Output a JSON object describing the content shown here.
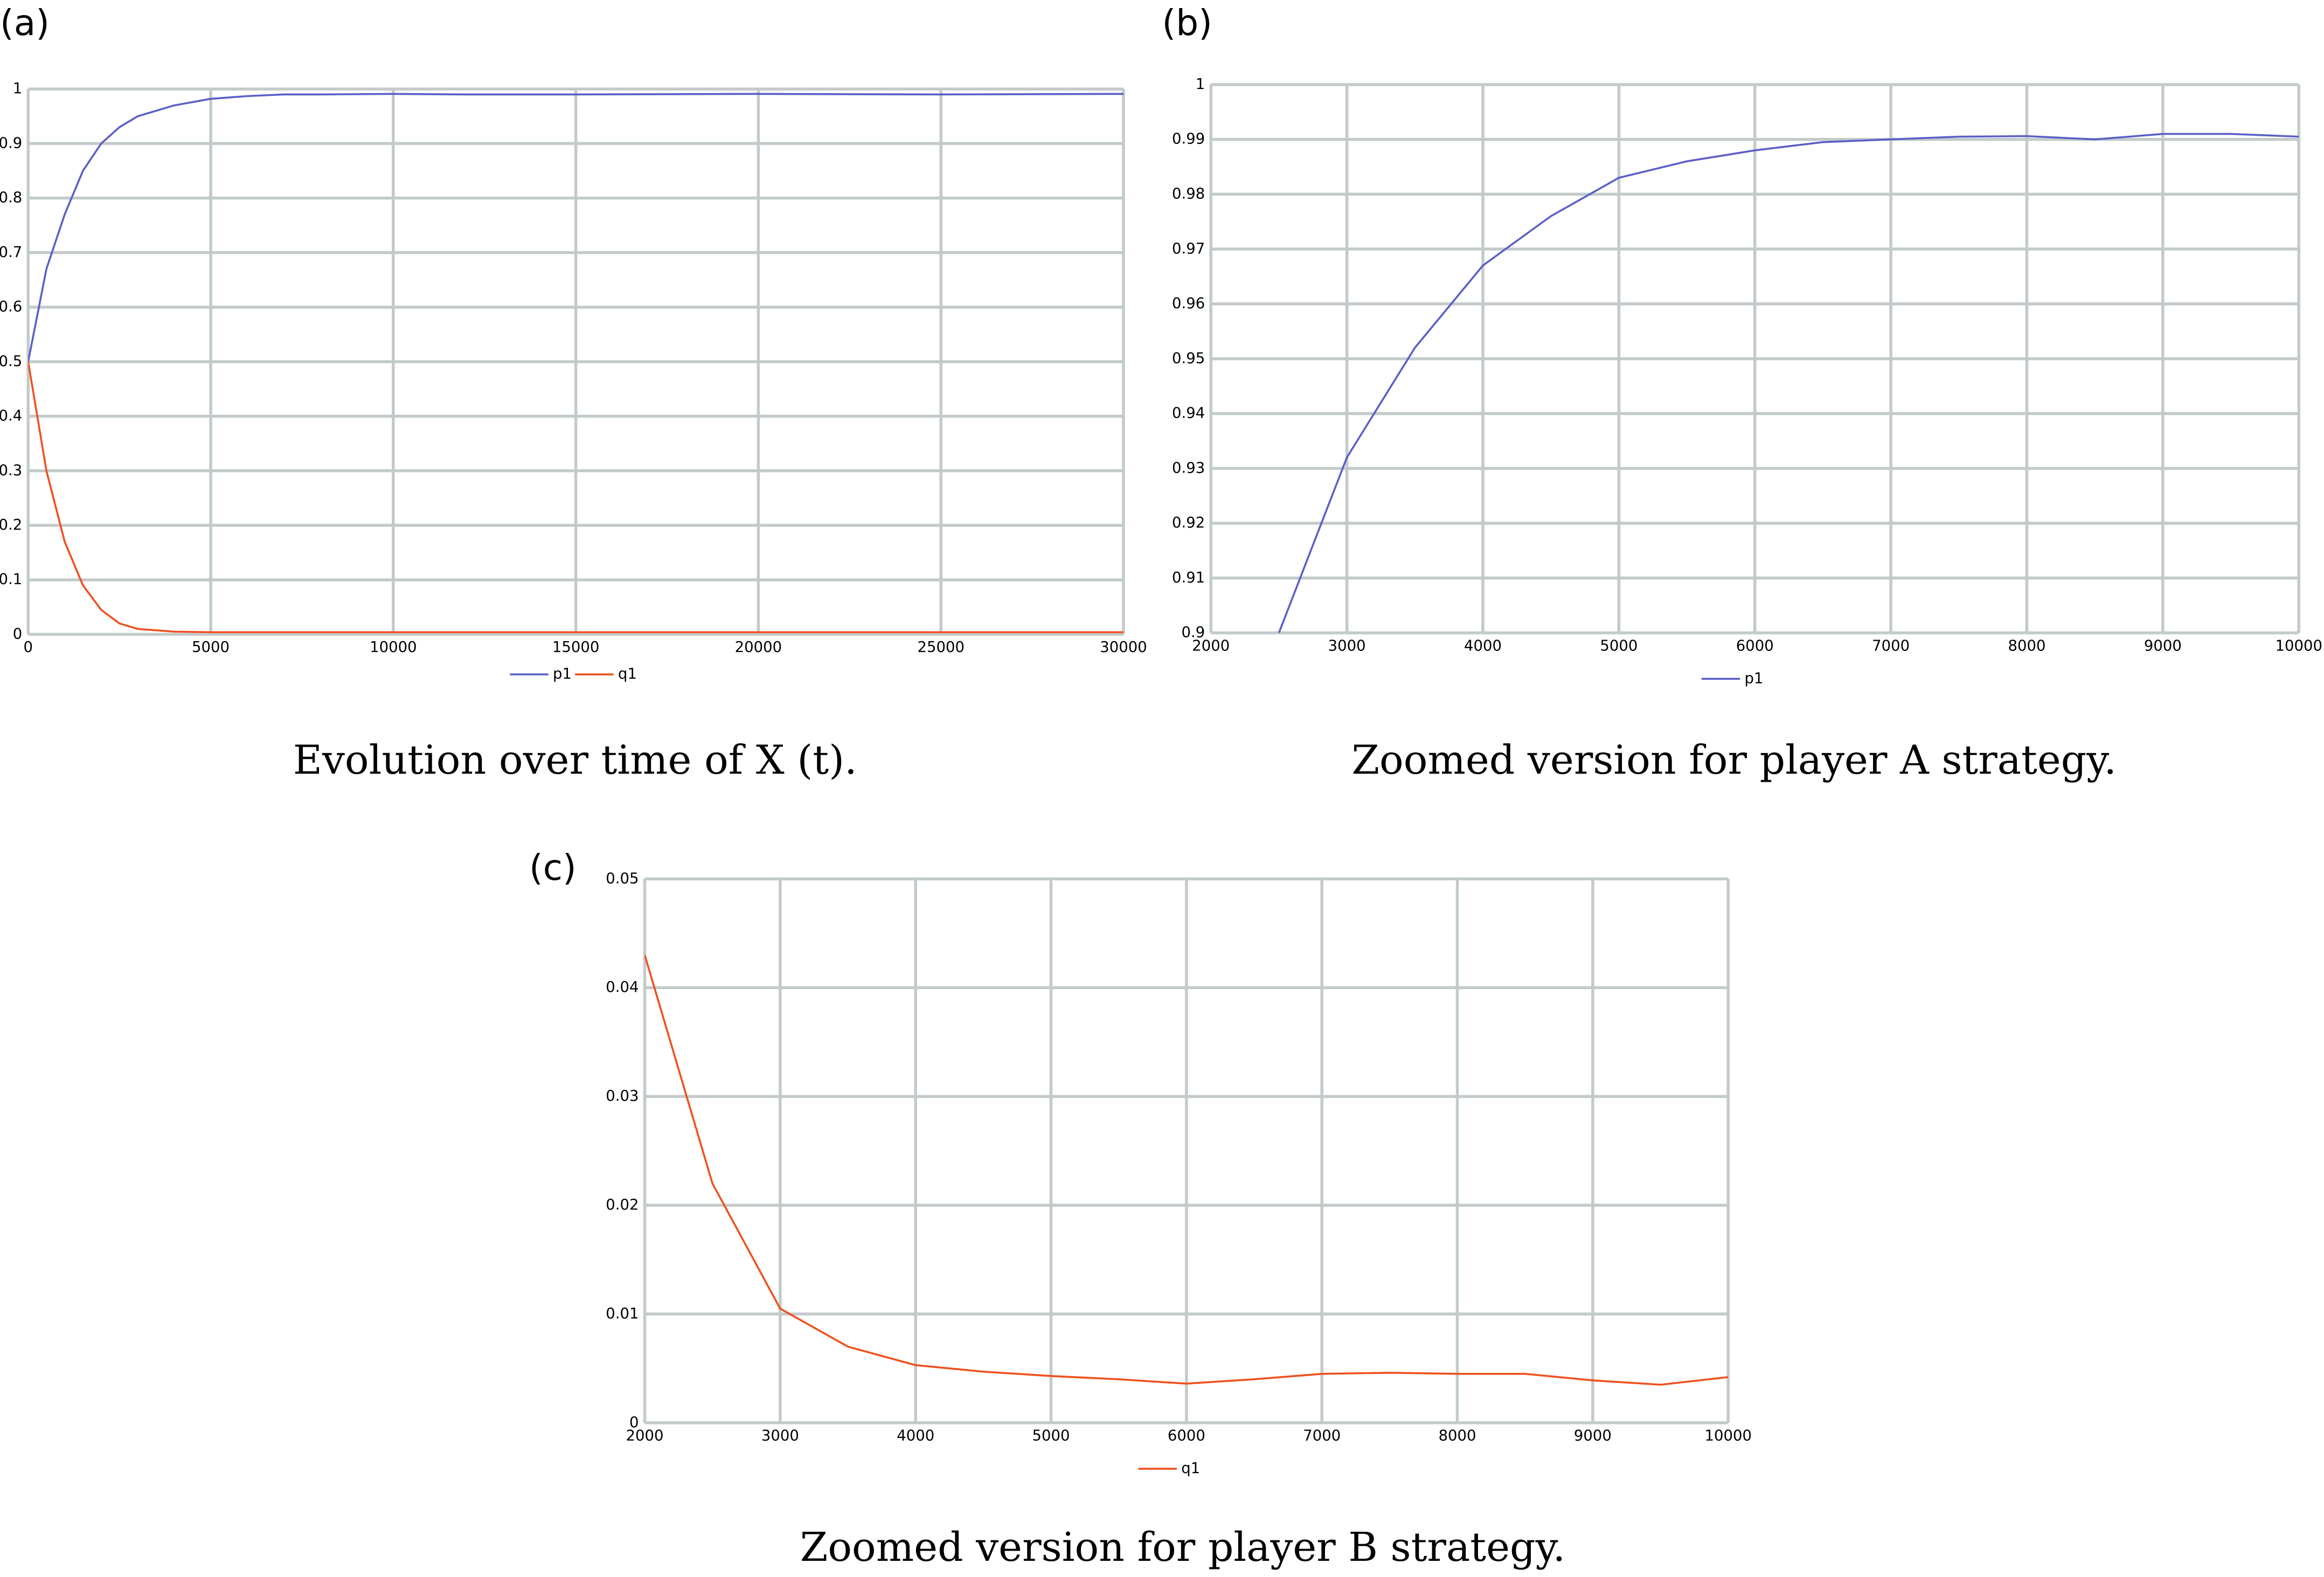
{
  "chart_data": [
    {
      "type": "line",
      "label": "(a)",
      "caption": "Evolution over time of X (t).",
      "x": [
        0,
        500,
        1000,
        1500,
        2000,
        2500,
        3000,
        4000,
        5000,
        6000,
        7000,
        8000,
        10000,
        12000,
        15000,
        20000,
        25000,
        30000
      ],
      "series": [
        {
          "name": "p1",
          "color": "#5a5fc8",
          "values": [
            0.5,
            0.67,
            0.77,
            0.85,
            0.9,
            0.93,
            0.95,
            0.97,
            0.982,
            0.987,
            0.99,
            0.99,
            0.991,
            0.99,
            0.99,
            0.991,
            0.99,
            0.991
          ]
        },
        {
          "name": "q1",
          "color": "#f0501e",
          "values": [
            0.5,
            0.3,
            0.17,
            0.09,
            0.045,
            0.02,
            0.01,
            0.005,
            0.004,
            0.004,
            0.004,
            0.004,
            0.004,
            0.004,
            0.004,
            0.004,
            0.004,
            0.004
          ]
        }
      ],
      "xlim": [
        0,
        30000
      ],
      "xticks": [
        0,
        5000,
        10000,
        15000,
        20000,
        25000,
        30000
      ],
      "ylim": [
        0,
        1
      ],
      "yticks": [
        0,
        0.1,
        0.2,
        0.3,
        0.4,
        0.5,
        0.6,
        0.7,
        0.8,
        0.9,
        1
      ],
      "grid": true
    },
    {
      "type": "line",
      "label": "(b)",
      "caption": "Zoomed version for player A strategy.",
      "x": [
        2500,
        3000,
        3500,
        4000,
        4500,
        5000,
        5500,
        6000,
        6500,
        7000,
        7500,
        8000,
        8500,
        9000,
        9500,
        10000
      ],
      "series": [
        {
          "name": "p1",
          "color": "#5a5fc8",
          "values": [
            0.9,
            0.932,
            0.952,
            0.967,
            0.976,
            0.983,
            0.986,
            0.988,
            0.9895,
            0.99,
            0.9905,
            0.9906,
            0.99,
            0.991,
            0.991,
            0.9905
          ]
        }
      ],
      "xlim": [
        2000,
        10000
      ],
      "xticks": [
        2000,
        3000,
        4000,
        5000,
        6000,
        7000,
        8000,
        9000,
        10000
      ],
      "ylim": [
        0.9,
        1
      ],
      "yticks": [
        0.9,
        0.91,
        0.92,
        0.93,
        0.94,
        0.95,
        0.96,
        0.97,
        0.98,
        0.99,
        1
      ],
      "grid": true
    },
    {
      "type": "line",
      "label": "(c)",
      "caption": "Zoomed version for player B strategy.",
      "x": [
        2000,
        2500,
        3000,
        3500,
        4000,
        4500,
        5000,
        5500,
        6000,
        6500,
        7000,
        7500,
        8000,
        8500,
        9000,
        9500,
        10000
      ],
      "series": [
        {
          "name": "q1",
          "color": "#f0501e",
          "values": [
            0.043,
            0.022,
            0.0105,
            0.007,
            0.0053,
            0.0047,
            0.0043,
            0.004,
            0.0036,
            0.004,
            0.0045,
            0.0046,
            0.0045,
            0.0045,
            0.0039,
            0.0035,
            0.0042
          ]
        }
      ],
      "xlim": [
        2000,
        10000
      ],
      "xticks": [
        2000,
        3000,
        4000,
        5000,
        6000,
        7000,
        8000,
        9000,
        10000
      ],
      "ylim": [
        0,
        0.05
      ],
      "yticks": [
        0,
        0.01,
        0.02,
        0.03,
        0.04,
        0.05
      ],
      "grid": true
    }
  ]
}
